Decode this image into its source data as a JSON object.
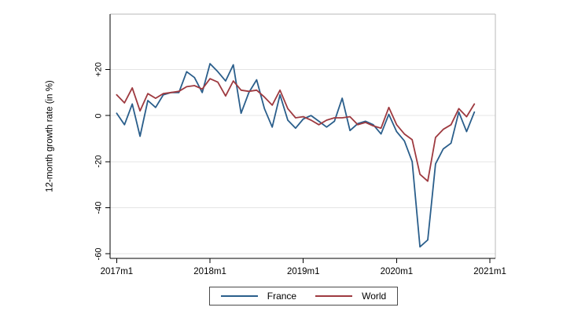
{
  "chart_data": {
    "type": "line",
    "title": "",
    "xlabel": "",
    "ylabel": "12-month growth rate (in %)",
    "x_frequency": "monthly",
    "grid": "horizontal-only",
    "legend_position": "bottom-center",
    "ylim": [
      -62,
      44
    ],
    "xlim_months": [
      -0.85,
      48.7
    ],
    "yticks": [
      {
        "v": 20,
        "label": "+20"
      },
      {
        "v": 0,
        "label": "0"
      },
      {
        "v": -20,
        "label": "-20"
      },
      {
        "v": -40,
        "label": "-40"
      },
      {
        "v": -60,
        "label": "-60"
      }
    ],
    "xticks": [
      {
        "m": 0,
        "label": "2017m1"
      },
      {
        "m": 12,
        "label": "2018m1"
      },
      {
        "m": 24,
        "label": "2019m1"
      },
      {
        "m": 36,
        "label": "2020m1"
      },
      {
        "m": 48,
        "label": "2021m1"
      }
    ],
    "months": [
      "2017m1",
      "2017m2",
      "2017m3",
      "2017m4",
      "2017m5",
      "2017m6",
      "2017m7",
      "2017m8",
      "2017m9",
      "2017m10",
      "2017m11",
      "2017m12",
      "2018m1",
      "2018m2",
      "2018m3",
      "2018m4",
      "2018m5",
      "2018m6",
      "2018m7",
      "2018m8",
      "2018m9",
      "2018m10",
      "2018m11",
      "2018m12",
      "2019m1",
      "2019m2",
      "2019m3",
      "2019m4",
      "2019m5",
      "2019m6",
      "2019m7",
      "2019m8",
      "2019m9",
      "2019m10",
      "2019m11",
      "2019m12",
      "2020m1",
      "2020m2",
      "2020m3",
      "2020m4",
      "2020m5",
      "2020m6",
      "2020m7",
      "2020m8",
      "2020m9",
      "2020m10",
      "2020m11"
    ],
    "series": [
      {
        "name": "France",
        "color": "#2a5e8b",
        "values": [
          1,
          -4,
          5,
          -9,
          6.5,
          3.5,
          9,
          10,
          10,
          19,
          16.5,
          10,
          22.5,
          19,
          15,
          22,
          1,
          10,
          15.5,
          3,
          -5,
          9,
          -2,
          -5.5,
          -1.5,
          0,
          -2.5,
          -5,
          -2.5,
          7.5,
          -6.5,
          -3.5,
          -2.5,
          -4,
          -8,
          0.5,
          -7,
          -11,
          -20,
          -57,
          -54,
          -21,
          -14.5,
          -12,
          1.5,
          -7,
          1.5
        ]
      },
      {
        "name": "World",
        "color": "#9e3a40",
        "values": [
          9,
          5.5,
          12,
          2,
          9.5,
          7.5,
          9.5,
          10,
          10.5,
          12.5,
          13,
          11.5,
          16,
          14.5,
          8.5,
          15,
          11,
          10.5,
          11,
          8,
          4.5,
          11,
          3,
          -1,
          -0.5,
          -2,
          -4,
          -2,
          -1,
          -1,
          -0.5,
          -4,
          -3,
          -4.5,
          -5.5,
          3.5,
          -4,
          -8,
          -10.5,
          -25.5,
          -28.5,
          -9.5,
          -6,
          -4,
          3,
          -0.5,
          5
        ]
      }
    ],
    "colors": {
      "gridline": "#e4e4e4",
      "axis": "#000000",
      "plot_border": "#b8b8b8",
      "background": "#ffffff"
    }
  },
  "legend": {
    "items": [
      {
        "label": "France",
        "color": "#2a5e8b"
      },
      {
        "label": "World",
        "color": "#9e3a40"
      }
    ]
  }
}
